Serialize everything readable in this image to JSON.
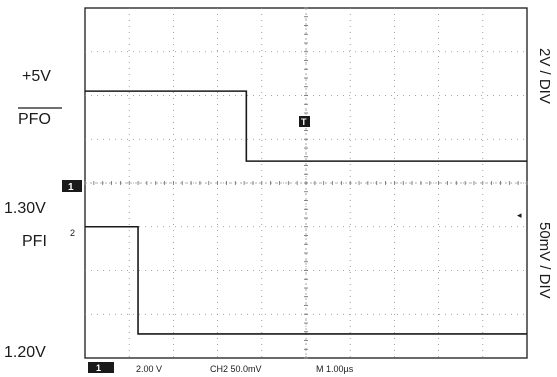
{
  "chart_data": {
    "type": "line",
    "title": "",
    "xlabel": "",
    "ylabel": "",
    "grid": true,
    "x_divisions": 10,
    "y_divisions": 8,
    "labels": {
      "v5": "+5V",
      "pfo": "PFO",
      "v130": "1.30V",
      "pfi": "PFI",
      "v120": "1.20V",
      "scale_top": "2V / DIV",
      "scale_bottom": "50mV / DIV"
    },
    "markers": {
      "ch1": "1",
      "ch2": "2",
      "trig": "T",
      "trig_arrow": "◂"
    },
    "status": {
      "ch": "1",
      "ch1_scale": "2.00 V",
      "ch2_scale": "CH2 50.0mV",
      "timebase": "M 1.00µs"
    },
    "series": [
      {
        "name": "PFO",
        "x": [
          0,
          3.65,
          3.65,
          10
        ],
        "y": [
          6.1,
          6.1,
          4.5,
          4.5
        ]
      },
      {
        "name": "PFI",
        "x": [
          0,
          1.2,
          1.2,
          10
        ],
        "y": [
          3.0,
          3.0,
          0.55,
          0.55
        ]
      }
    ],
    "xlim": [
      0,
      10
    ],
    "ylim": [
      0,
      8
    ]
  }
}
